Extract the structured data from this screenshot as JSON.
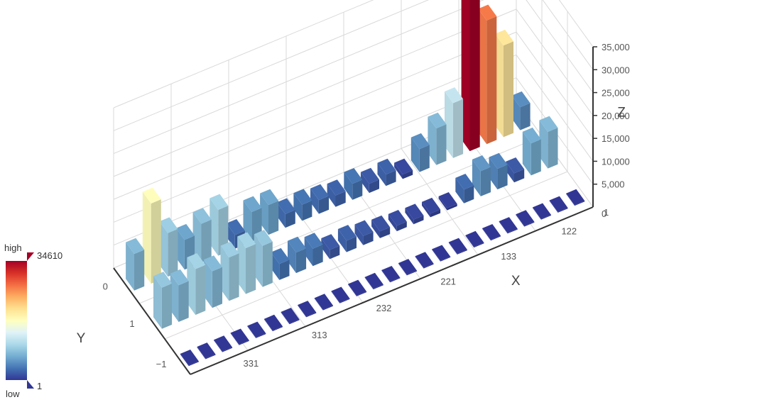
{
  "chart_data": {
    "type": "bar3d",
    "axes": {
      "x": {
        "title": "X",
        "tick_labels": [
          "122",
          "133",
          "221",
          "232",
          "313",
          "331"
        ]
      },
      "y": {
        "title": "Y",
        "tick_labels": [
          "0",
          "1",
          "−1"
        ]
      },
      "z": {
        "title": "Z",
        "range": [
          0,
          35000
        ],
        "tick_labels": [
          "5,000",
          "10,000",
          "15,000",
          "20,000",
          "25,000",
          "30,000",
          "35,000"
        ],
        "zero_labels": [
          "0",
          "1"
        ]
      }
    },
    "visual_map": {
      "min": 1,
      "max": 34610,
      "min_label": "1",
      "max_label": "34610",
      "high_text": "high",
      "low_text": "low",
      "colors": [
        "#313695",
        "#4575b4",
        "#74add1",
        "#abd9e9",
        "#e0f3f8",
        "#ffffbf",
        "#fee090",
        "#fdae61",
        "#f46d43",
        "#d73027",
        "#a50026"
      ]
    },
    "series": [
      {
        "y": "-1",
        "values": [
          30,
          20,
          30,
          20,
          30,
          20,
          20,
          20,
          30,
          20,
          20,
          20,
          20,
          20,
          20,
          20,
          20,
          20,
          20,
          20,
          20,
          20,
          20,
          20
        ]
      },
      {
        "y": "1",
        "values": [
          9000,
          8000,
          10000,
          8000,
          9500,
          10000,
          9000,
          3500,
          4500,
          3800,
          2000,
          2500,
          2000,
          1500,
          1200,
          1000,
          800,
          500,
          3000,
          5500,
          4500,
          2000,
          7000,
          8000
        ]
      },
      {
        "y": "0",
        "values": [
          8000,
          17500,
          9500,
          6500,
          8500,
          10000,
          3000,
          6500,
          6500,
          3000,
          3500,
          3000,
          2500,
          3500,
          2000,
          2500,
          1000,
          5000,
          8000,
          12000,
          34610,
          27000,
          20000,
          5000
        ]
      }
    ]
  }
}
